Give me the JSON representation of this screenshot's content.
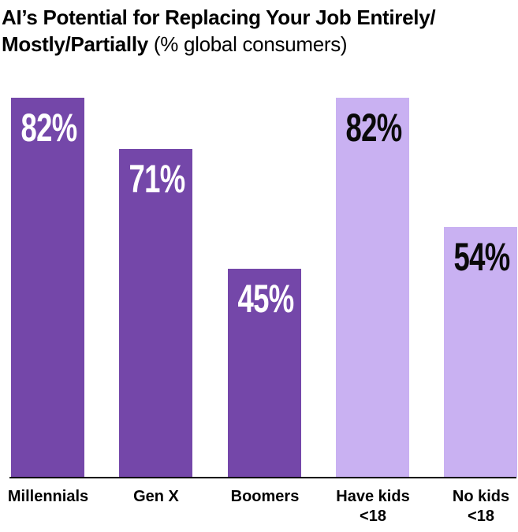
{
  "title": {
    "line1_bold": "AI’s Potential for Replacing Your Job Entirely/",
    "line2_bold": "Mostly/Partially",
    "line2_normal": " (% global consumers)"
  },
  "colors": {
    "dark_purple": "#7447a9",
    "light_purple": "#c9b1f2",
    "value_label_on_dark": "#ffffff",
    "value_label_on_light": "#0a0a0a",
    "axis": "#000000",
    "title_text": "#000000"
  },
  "chart_data": {
    "type": "bar",
    "title": "AI’s Potential for Replacing Your Job Entirely/Mostly/Partially",
    "subtitle": "(% global consumers)",
    "unit": "%",
    "ylim": [
      0,
      100
    ],
    "grid": false,
    "legend": false,
    "categories": [
      "Millennials",
      "Gen X",
      "Boomers",
      "Have kids <18",
      "No kids <18"
    ],
    "values": [
      82,
      71,
      45,
      82,
      54
    ],
    "bars": [
      {
        "slug": "millennials",
        "category_line1": "Millennials",
        "category_line2": "",
        "value": 82,
        "label": "82%",
        "fill": "#7447a9",
        "label_color": "#ffffff"
      },
      {
        "slug": "gen-x",
        "category_line1": "Gen X",
        "category_line2": "",
        "value": 71,
        "label": "71%",
        "fill": "#7447a9",
        "label_color": "#ffffff"
      },
      {
        "slug": "boomers",
        "category_line1": "Boomers",
        "category_line2": "",
        "value": 45,
        "label": "45%",
        "fill": "#7447a9",
        "label_color": "#ffffff"
      },
      {
        "slug": "have-kids-under-18",
        "category_line1": "Have kids",
        "category_line2": "<18",
        "value": 82,
        "label": "82%",
        "fill": "#c9b1f2",
        "label_color": "#0a0a0a"
      },
      {
        "slug": "no-kids-under-18",
        "category_line1": "No kids",
        "category_line2": "<18",
        "value": 54,
        "label": "54%",
        "fill": "#c9b1f2",
        "label_color": "#0a0a0a"
      }
    ]
  }
}
